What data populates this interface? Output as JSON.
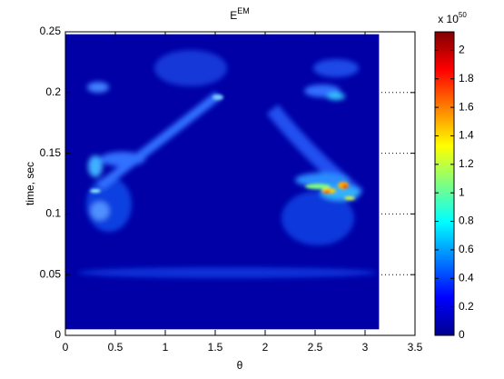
{
  "chart_data": {
    "type": "heatmap",
    "title": "E",
    "title_superscript": "EM",
    "x_label": "θ",
    "y_label": "time, sec",
    "xlim": [
      0,
      3.5
    ],
    "xticks": [
      0,
      0.5,
      1,
      1.5,
      2,
      2.5,
      3,
      3.5
    ],
    "ylim": [
      0,
      0.25
    ],
    "yticks": [
      0,
      0.05,
      0.1,
      0.15,
      0.2,
      0.25
    ],
    "image_xlim": [
      0,
      3.14
    ],
    "image_ylim": [
      0.005,
      0.248
    ],
    "grid": true,
    "colormap": "jet",
    "clim": [
      0,
      2.13
    ],
    "cticks": [
      0,
      0.2,
      0.4,
      0.6,
      0.8,
      1,
      1.2,
      1.4,
      1.6,
      1.8,
      2
    ],
    "colorbar_multiplier": "x 10",
    "colorbar_exponent": "50"
  }
}
